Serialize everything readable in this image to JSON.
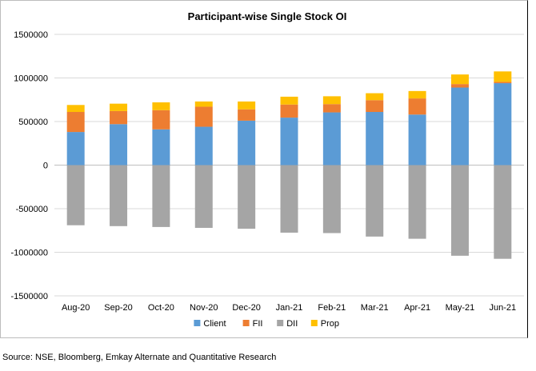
{
  "source": "Source: NSE, Bloomberg, Emkay Alternate and Quantitative Research",
  "chart_data": {
    "type": "bar",
    "stacked": true,
    "title": "Participant-wise Single Stock OI",
    "xlabel": "",
    "ylabel": "",
    "ylim": [
      -1500000,
      1500000
    ],
    "yticks": [
      1500000,
      1000000,
      500000,
      0,
      -500000,
      -1000000,
      -1500000
    ],
    "ytick_labels": [
      "1500000",
      "1000000",
      "500000",
      "0",
      "-500000",
      "-1000000",
      "-1500000"
    ],
    "grid": true,
    "legend_position": "bottom",
    "categories": [
      "Aug-20",
      "Sep-20",
      "Oct-20",
      "Nov-20",
      "Dec-20",
      "Jan-21",
      "Feb-21",
      "Mar-21",
      "Apr-21",
      "May-21",
      "Jun-21"
    ],
    "series": [
      {
        "name": "Client",
        "color": "#5B9BD5",
        "values": [
          380000,
          470000,
          410000,
          440000,
          510000,
          545000,
          605000,
          610000,
          580000,
          890000,
          940000
        ]
      },
      {
        "name": "FII",
        "color": "#ED7D31",
        "values": [
          230000,
          150000,
          220000,
          230000,
          130000,
          150000,
          95000,
          135000,
          185000,
          40000,
          15000
        ]
      },
      {
        "name": "DII",
        "color": "#A5A5A5",
        "values": [
          -690000,
          -700000,
          -710000,
          -720000,
          -730000,
          -775000,
          -780000,
          -820000,
          -845000,
          -1040000,
          -1075000
        ]
      },
      {
        "name": "Prop",
        "color": "#FFC000",
        "values": [
          80000,
          85000,
          90000,
          60000,
          90000,
          90000,
          90000,
          80000,
          85000,
          110000,
          120000
        ]
      }
    ]
  }
}
